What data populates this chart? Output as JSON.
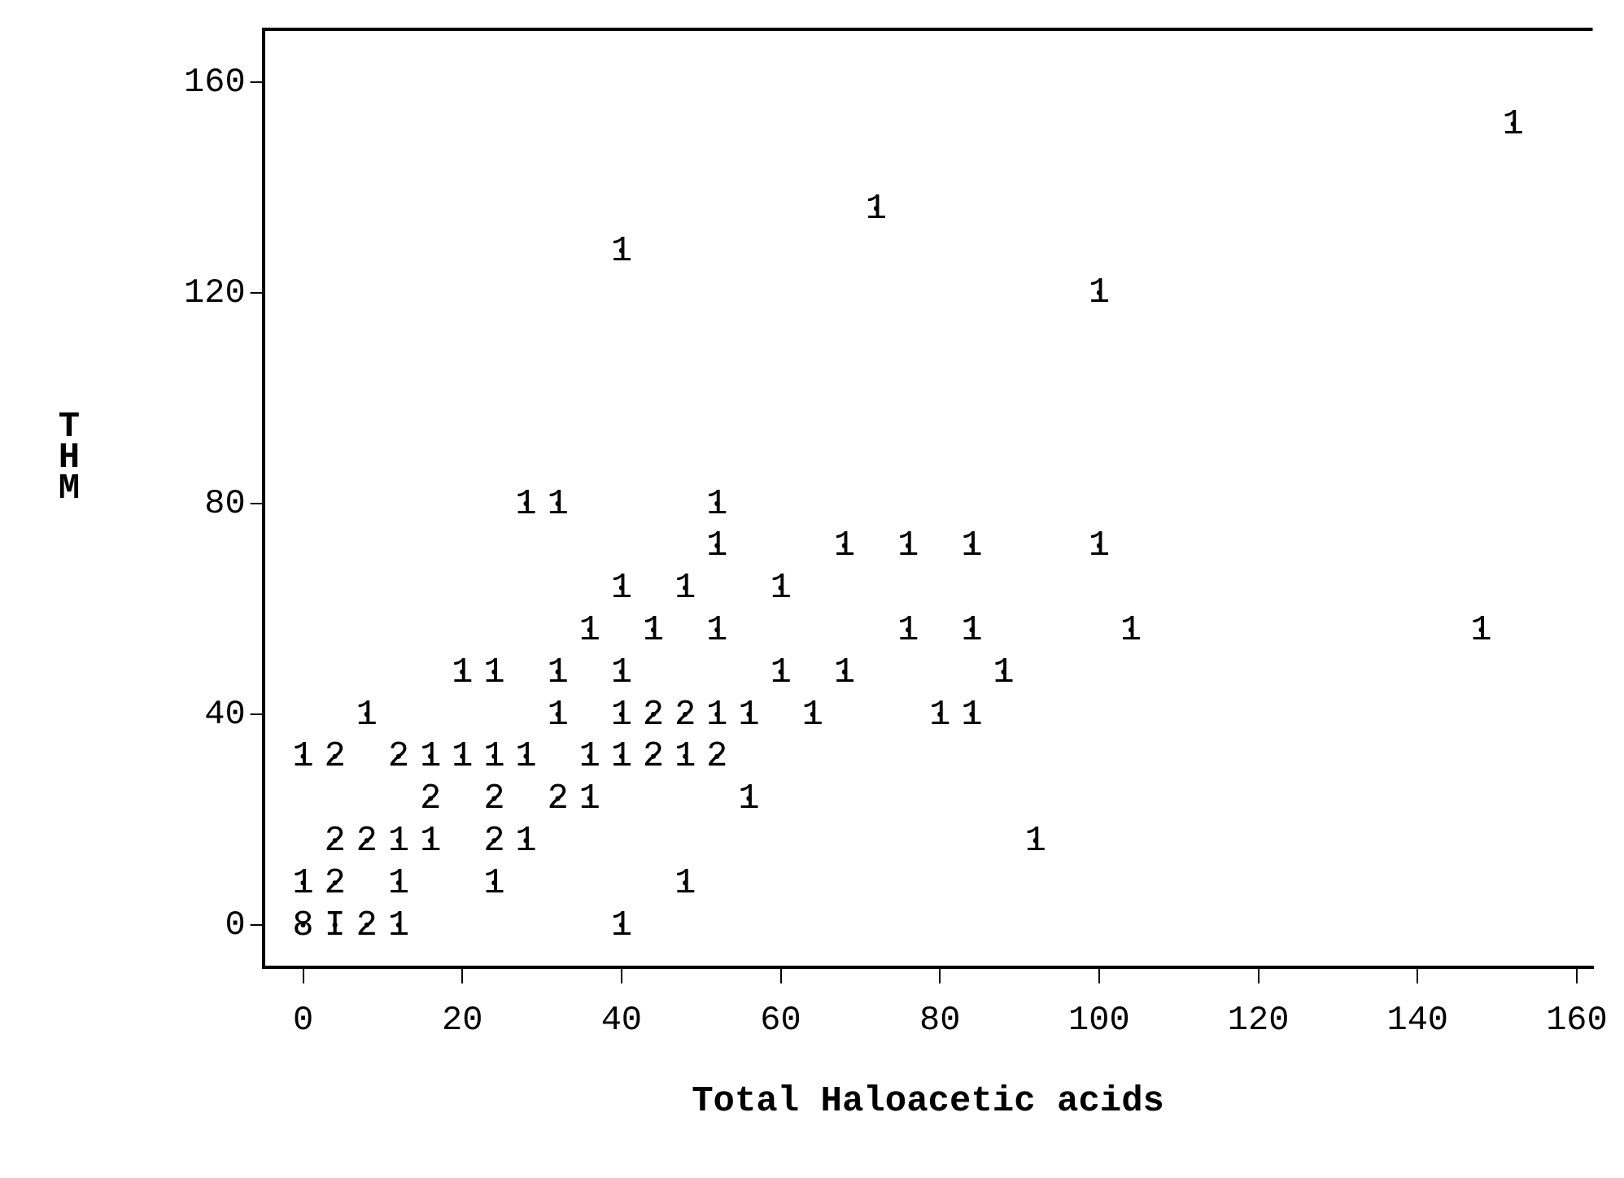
{
  "chart_data": {
    "type": "scatter",
    "xlabel": "Total Haloacetic acids",
    "ylabel": "THM",
    "grid": false,
    "legend": false,
    "xlim": [
      -5,
      162
    ],
    "xticks": [
      0,
      20,
      40,
      60,
      80,
      100,
      120,
      140,
      160
    ],
    "ylim": [
      -8,
      170
    ],
    "yticks": [
      0,
      40,
      80,
      120,
      160
    ],
    "x": [
      0,
      4,
      8,
      12,
      40,
      0,
      4,
      12,
      24,
      48,
      4,
      8,
      12,
      16,
      24,
      28,
      92,
      16,
      24,
      32,
      36,
      56,
      0,
      4,
      12,
      16,
      20,
      24,
      28,
      36,
      40,
      44,
      48,
      52,
      8,
      32,
      40,
      44,
      48,
      52,
      56,
      64,
      80,
      84,
      20,
      24,
      32,
      40,
      60,
      68,
      88,
      36,
      44,
      52,
      76,
      84,
      104,
      148,
      40,
      48,
      60,
      52,
      68,
      76,
      84,
      100,
      28,
      32,
      52,
      100,
      40,
      72,
      152
    ],
    "values": [
      0,
      0,
      0,
      0,
      0,
      8,
      8,
      8,
      8,
      8,
      16,
      16,
      16,
      16,
      16,
      16,
      16,
      24,
      24,
      24,
      24,
      24,
      32,
      32,
      32,
      32,
      32,
      32,
      32,
      32,
      32,
      32,
      32,
      32,
      40,
      40,
      40,
      40,
      40,
      40,
      40,
      40,
      40,
      40,
      48,
      48,
      48,
      48,
      48,
      48,
      48,
      56,
      56,
      56,
      56,
      56,
      56,
      56,
      64,
      64,
      64,
      72,
      72,
      72,
      72,
      72,
      80,
      80,
      80,
      120,
      128,
      136,
      152
    ],
    "annotations": [
      {
        "text": "8",
        "x": 0,
        "y": 0
      },
      {
        "text": "I",
        "x": 4,
        "y": 0
      },
      {
        "text": "2",
        "x": 8,
        "y": 0
      },
      {
        "text": "1",
        "x": 12,
        "y": 0
      },
      {
        "text": "1",
        "x": 40,
        "y": 0
      },
      {
        "text": "1",
        "x": 0,
        "y": 8
      },
      {
        "text": "2",
        "x": 4,
        "y": 8
      },
      {
        "text": "1",
        "x": 12,
        "y": 8
      },
      {
        "text": "1",
        "x": 24,
        "y": 8
      },
      {
        "text": "1",
        "x": 48,
        "y": 8
      },
      {
        "text": "2",
        "x": 4,
        "y": 16
      },
      {
        "text": "2",
        "x": 8,
        "y": 16
      },
      {
        "text": "1",
        "x": 12,
        "y": 16
      },
      {
        "text": "1",
        "x": 16,
        "y": 16
      },
      {
        "text": "2",
        "x": 24,
        "y": 16
      },
      {
        "text": "1",
        "x": 28,
        "y": 16
      },
      {
        "text": "1",
        "x": 92,
        "y": 16
      },
      {
        "text": "2",
        "x": 16,
        "y": 24
      },
      {
        "text": "2",
        "x": 24,
        "y": 24
      },
      {
        "text": "2",
        "x": 32,
        "y": 24
      },
      {
        "text": "1",
        "x": 36,
        "y": 24
      },
      {
        "text": "1",
        "x": 56,
        "y": 24
      },
      {
        "text": "1",
        "x": 0,
        "y": 32
      },
      {
        "text": "2",
        "x": 4,
        "y": 32
      },
      {
        "text": "2",
        "x": 12,
        "y": 32
      },
      {
        "text": "1",
        "x": 16,
        "y": 32
      },
      {
        "text": "1",
        "x": 20,
        "y": 32
      },
      {
        "text": "1",
        "x": 24,
        "y": 32
      },
      {
        "text": "1",
        "x": 28,
        "y": 32
      },
      {
        "text": "1",
        "x": 36,
        "y": 32
      },
      {
        "text": "1",
        "x": 40,
        "y": 32
      },
      {
        "text": "2",
        "x": 44,
        "y": 32
      },
      {
        "text": "1",
        "x": 48,
        "y": 32
      },
      {
        "text": "2",
        "x": 52,
        "y": 32
      },
      {
        "text": "1",
        "x": 8,
        "y": 40
      },
      {
        "text": "1",
        "x": 32,
        "y": 40
      },
      {
        "text": "1",
        "x": 40,
        "y": 40
      },
      {
        "text": "2",
        "x": 44,
        "y": 40
      },
      {
        "text": "2",
        "x": 48,
        "y": 40
      },
      {
        "text": "1",
        "x": 52,
        "y": 40
      },
      {
        "text": "1",
        "x": 56,
        "y": 40
      },
      {
        "text": "1",
        "x": 64,
        "y": 40
      },
      {
        "text": "1",
        "x": 80,
        "y": 40
      },
      {
        "text": "1",
        "x": 84,
        "y": 40
      },
      {
        "text": "1",
        "x": 20,
        "y": 48
      },
      {
        "text": "1",
        "x": 24,
        "y": 48
      },
      {
        "text": "1",
        "x": 32,
        "y": 48
      },
      {
        "text": "1",
        "x": 40,
        "y": 48
      },
      {
        "text": "1",
        "x": 60,
        "y": 48
      },
      {
        "text": "1",
        "x": 68,
        "y": 48
      },
      {
        "text": "1",
        "x": 88,
        "y": 48
      },
      {
        "text": "1",
        "x": 36,
        "y": 56
      },
      {
        "text": "1",
        "x": 44,
        "y": 56
      },
      {
        "text": "1",
        "x": 52,
        "y": 56
      },
      {
        "text": "1",
        "x": 76,
        "y": 56
      },
      {
        "text": "1",
        "x": 84,
        "y": 56
      },
      {
        "text": "1",
        "x": 104,
        "y": 56
      },
      {
        "text": "1",
        "x": 148,
        "y": 56
      },
      {
        "text": "1",
        "x": 40,
        "y": 64
      },
      {
        "text": "1",
        "x": 48,
        "y": 64
      },
      {
        "text": "1",
        "x": 60,
        "y": 64
      },
      {
        "text": "1",
        "x": 52,
        "y": 72
      },
      {
        "text": "1",
        "x": 68,
        "y": 72
      },
      {
        "text": "1",
        "x": 76,
        "y": 72
      },
      {
        "text": "1",
        "x": 84,
        "y": 72
      },
      {
        "text": "1",
        "x": 100,
        "y": 72
      },
      {
        "text": "1",
        "x": 28,
        "y": 80
      },
      {
        "text": "1",
        "x": 32,
        "y": 80
      },
      {
        "text": "1",
        "x": 52,
        "y": 80
      },
      {
        "text": "1",
        "x": 100,
        "y": 120
      },
      {
        "text": "1",
        "x": 40,
        "y": 128
      },
      {
        "text": "1",
        "x": 72,
        "y": 136
      },
      {
        "text": "1",
        "x": 152,
        "y": 152
      }
    ]
  }
}
